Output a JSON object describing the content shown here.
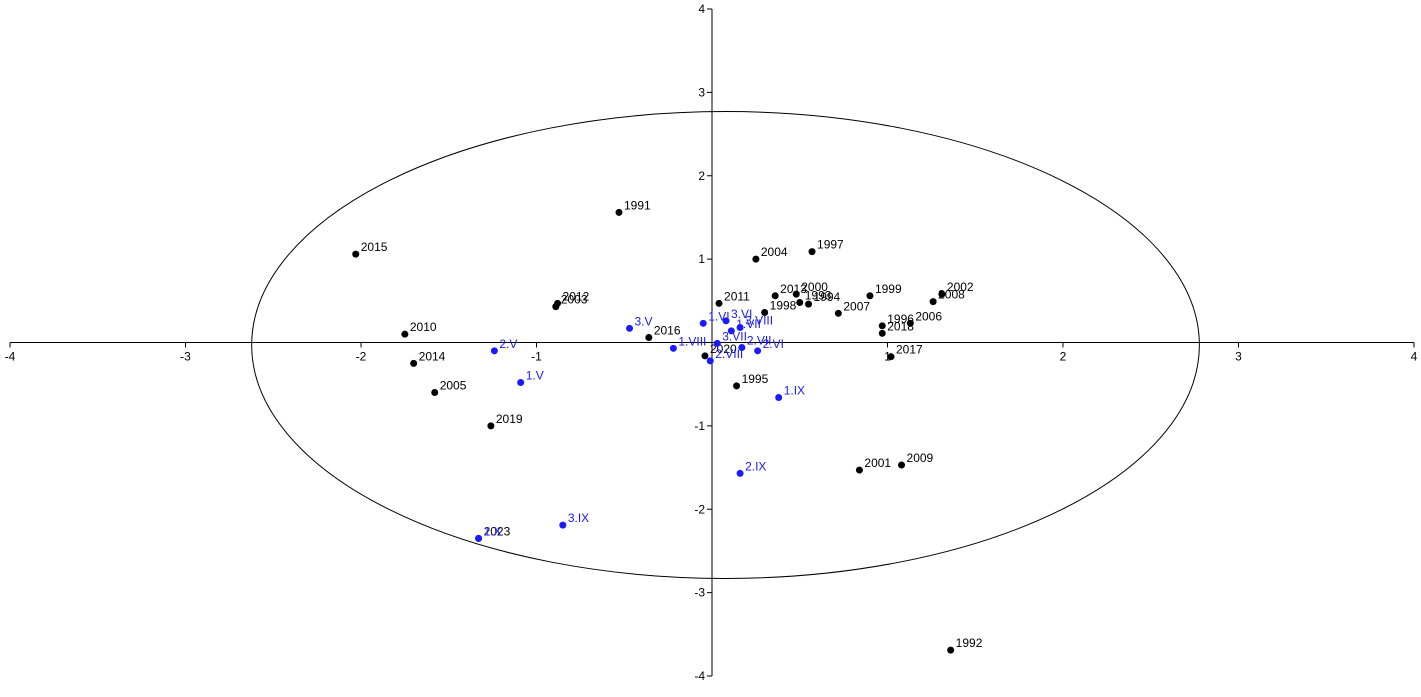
{
  "chart_data": {
    "type": "scatter",
    "xlim": [
      -4,
      4
    ],
    "ylim": [
      -4,
      4
    ],
    "xticks": [
      -4,
      -3,
      -2,
      -1,
      1,
      2,
      3,
      4
    ],
    "yticks": [
      -4,
      -3,
      -2,
      -1,
      1,
      2,
      3,
      4
    ],
    "ellipse": {
      "cx": 0.077,
      "cy": -0.03,
      "rx": 2.7,
      "ry": 2.8
    },
    "series": [
      {
        "color": "#000000",
        "labels": [
          "1991",
          "2015",
          "2004",
          "1997",
          "2011",
          "2012",
          "2003",
          "2013",
          "2000",
          "1994",
          "1993",
          "1998",
          "2007",
          "1999",
          "2002",
          "2008",
          "1996",
          "2006",
          "2018",
          "2017",
          "2010",
          "2016",
          "2020",
          "1995",
          "2014",
          "2005",
          "2019",
          "2001",
          "2009",
          "2023",
          "1992"
        ],
        "x": [
          -0.53,
          -2.03,
          0.25,
          0.57,
          0.04,
          -0.88,
          -0.89,
          0.36,
          0.48,
          0.55,
          0.5,
          0.3,
          0.72,
          0.9,
          1.31,
          1.26,
          0.97,
          1.13,
          0.97,
          1.02,
          -1.75,
          -0.36,
          -0.04,
          0.14,
          -1.7,
          -1.58,
          -1.26,
          0.84,
          1.08,
          -1.33,
          1.36
        ],
        "y": [
          1.56,
          1.06,
          1.0,
          1.09,
          0.47,
          0.47,
          0.43,
          0.56,
          0.58,
          0.46,
          0.48,
          0.36,
          0.35,
          0.56,
          0.58,
          0.49,
          0.2,
          0.23,
          0.11,
          -0.17,
          0.1,
          0.06,
          -0.16,
          -0.52,
          -0.25,
          -0.6,
          -1.0,
          -1.53,
          -1.47,
          -2.35,
          -3.69
        ]
      },
      {
        "color": "#1a1aff",
        "labels": [
          "1.VI",
          "3.VI",
          "1.VII",
          "3.VIII",
          "3.V",
          "2.V",
          "1.V",
          "1.VIII",
          "3.VII",
          "2.VII",
          "2.VI",
          "2.VIII",
          "1.IX",
          "2.IX",
          "3.IX",
          "1.X"
        ],
        "x": [
          -0.05,
          0.08,
          0.11,
          0.16,
          -0.47,
          -1.24,
          -1.09,
          -0.22,
          0.03,
          0.17,
          0.26,
          -0.01,
          0.38,
          0.16,
          -0.85,
          -1.33
        ],
        "y": [
          0.23,
          0.26,
          0.14,
          0.18,
          0.17,
          -0.1,
          -0.48,
          -0.07,
          -0.01,
          -0.06,
          -0.1,
          -0.22,
          -0.66,
          -1.57,
          -2.19,
          -2.35
        ]
      }
    ]
  }
}
